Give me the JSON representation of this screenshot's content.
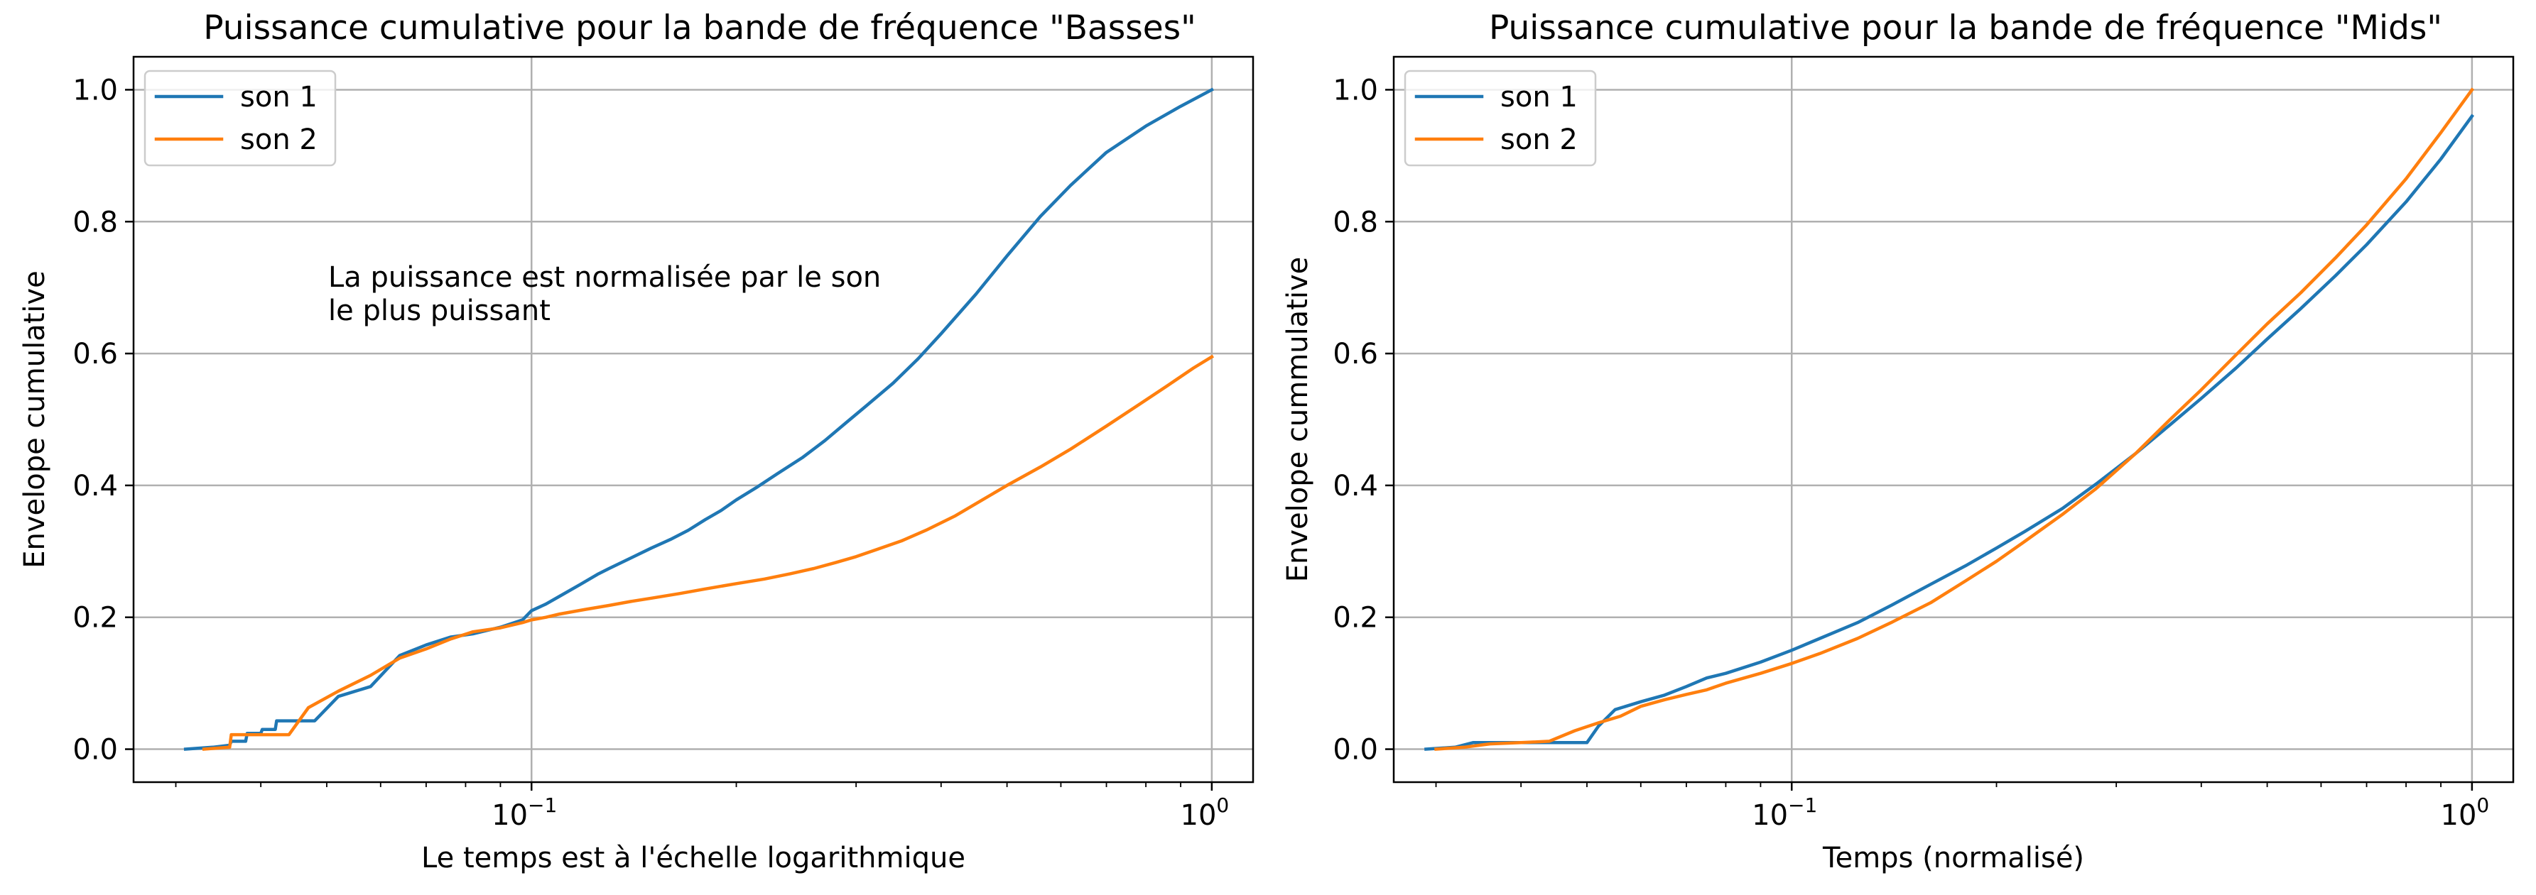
{
  "chart_data": [
    {
      "type": "line",
      "title": "Puissance cumulative pour la bande de fréquence \"Basses\"",
      "xlabel": "Le temps est à l'échelle logarithmique",
      "ylabel": "Envelope cumulative",
      "xscale": "log",
      "xlim": [
        0.026,
        1.15
      ],
      "ylim": [
        -0.05,
        1.05
      ],
      "xticks": [
        {
          "value": 0.1,
          "base": "10",
          "exp": "−1"
        },
        {
          "value": 1,
          "base": "10",
          "exp": "0"
        }
      ],
      "yticks": [
        {
          "value": 0,
          "label": "0.0"
        },
        {
          "value": 0.2,
          "label": "0.2"
        },
        {
          "value": 0.4,
          "label": "0.4"
        },
        {
          "value": 0.6,
          "label": "0.6"
        },
        {
          "value": 0.8,
          "label": "0.8"
        },
        {
          "value": 1.0,
          "label": "1.0"
        }
      ],
      "grid": true,
      "legend_position": "upper-left",
      "annotation": [
        "La puissance est normalisée par le son",
        "le plus puissant"
      ],
      "series": [
        {
          "name": "son 1",
          "color": "#1f77b4",
          "x": [
            0.031,
            0.034,
            0.036,
            0.0362,
            0.038,
            0.0382,
            0.04,
            0.0402,
            0.042,
            0.0422,
            0.045,
            0.048,
            0.052,
            0.058,
            0.064,
            0.07,
            0.076,
            0.082,
            0.09,
            0.097,
            0.1,
            0.105,
            0.11,
            0.118,
            0.125,
            0.13,
            0.14,
            0.15,
            0.16,
            0.17,
            0.18,
            0.19,
            0.2,
            0.215,
            0.23,
            0.25,
            0.27,
            0.29,
            0.31,
            0.34,
            0.37,
            0.4,
            0.45,
            0.5,
            0.56,
            0.62,
            0.7,
            0.8,
            0.9,
            1.0
          ],
          "y": [
            0.0,
            0.003,
            0.006,
            0.012,
            0.012,
            0.024,
            0.024,
            0.03,
            0.03,
            0.043,
            0.043,
            0.043,
            0.08,
            0.095,
            0.142,
            0.158,
            0.17,
            0.175,
            0.185,
            0.196,
            0.21,
            0.22,
            0.232,
            0.25,
            0.265,
            0.274,
            0.29,
            0.305,
            0.318,
            0.332,
            0.348,
            0.362,
            0.378,
            0.398,
            0.418,
            0.442,
            0.468,
            0.495,
            0.52,
            0.555,
            0.592,
            0.63,
            0.69,
            0.748,
            0.808,
            0.855,
            0.905,
            0.945,
            0.975,
            1.0
          ]
        },
        {
          "name": "son 2",
          "color": "#ff7f0e",
          "x": [
            0.033,
            0.036,
            0.0362,
            0.04,
            0.0402,
            0.044,
            0.047,
            0.052,
            0.058,
            0.064,
            0.07,
            0.076,
            0.082,
            0.09,
            0.097,
            0.1,
            0.105,
            0.11,
            0.12,
            0.13,
            0.14,
            0.15,
            0.165,
            0.18,
            0.2,
            0.22,
            0.24,
            0.26,
            0.28,
            0.3,
            0.32,
            0.35,
            0.38,
            0.42,
            0.46,
            0.5,
            0.56,
            0.62,
            0.7,
            0.78,
            0.86,
            0.94,
            1.0
          ],
          "y": [
            0.0,
            0.003,
            0.022,
            0.022,
            0.022,
            0.022,
            0.063,
            0.088,
            0.112,
            0.138,
            0.152,
            0.167,
            0.178,
            0.184,
            0.192,
            0.196,
            0.2,
            0.205,
            0.212,
            0.218,
            0.224,
            0.229,
            0.236,
            0.243,
            0.251,
            0.258,
            0.266,
            0.274,
            0.283,
            0.292,
            0.302,
            0.316,
            0.332,
            0.354,
            0.378,
            0.4,
            0.428,
            0.455,
            0.49,
            0.522,
            0.551,
            0.578,
            0.595
          ]
        }
      ]
    },
    {
      "type": "line",
      "title": "Puissance cumulative pour la bande de fréquence \"Mids\"",
      "xlabel": "Temps (normalisé)",
      "ylabel": "Envelope cummulative",
      "xscale": "log",
      "xlim": [
        0.026,
        1.15
      ],
      "ylim": [
        -0.05,
        1.05
      ],
      "xticks": [
        {
          "value": 0.1,
          "base": "10",
          "exp": "−1"
        },
        {
          "value": 1,
          "base": "10",
          "exp": "0"
        }
      ],
      "yticks": [
        {
          "value": 0,
          "label": "0.0"
        },
        {
          "value": 0.2,
          "label": "0.2"
        },
        {
          "value": 0.4,
          "label": "0.4"
        },
        {
          "value": 0.6,
          "label": "0.6"
        },
        {
          "value": 0.8,
          "label": "0.8"
        },
        {
          "value": 1.0,
          "label": "1.0"
        }
      ],
      "grid": true,
      "legend_position": "upper-left",
      "series": [
        {
          "name": "son 1",
          "color": "#1f77b4",
          "x": [
            0.029,
            0.032,
            0.034,
            0.036,
            0.04,
            0.044,
            0.05,
            0.052,
            0.055,
            0.06,
            0.065,
            0.07,
            0.075,
            0.08,
            0.09,
            0.1,
            0.11,
            0.125,
            0.14,
            0.16,
            0.18,
            0.2,
            0.22,
            0.25,
            0.28,
            0.32,
            0.36,
            0.4,
            0.45,
            0.5,
            0.56,
            0.63,
            0.7,
            0.8,
            0.9,
            1.0
          ],
          "y": [
            0.0,
            0.003,
            0.01,
            0.01,
            0.01,
            0.01,
            0.01,
            0.035,
            0.06,
            0.072,
            0.082,
            0.095,
            0.108,
            0.115,
            0.132,
            0.15,
            0.168,
            0.192,
            0.218,
            0.25,
            0.278,
            0.305,
            0.33,
            0.365,
            0.402,
            0.448,
            0.492,
            0.532,
            0.578,
            0.622,
            0.668,
            0.718,
            0.765,
            0.83,
            0.895,
            0.96
          ]
        },
        {
          "name": "son 2",
          "color": "#ff7f0e",
          "x": [
            0.03,
            0.033,
            0.036,
            0.04,
            0.044,
            0.048,
            0.052,
            0.056,
            0.06,
            0.065,
            0.07,
            0.075,
            0.08,
            0.09,
            0.1,
            0.11,
            0.125,
            0.14,
            0.16,
            0.18,
            0.2,
            0.22,
            0.25,
            0.28,
            0.32,
            0.36,
            0.4,
            0.45,
            0.5,
            0.56,
            0.63,
            0.7,
            0.8,
            0.9,
            1.0
          ],
          "y": [
            0.0,
            0.003,
            0.008,
            0.01,
            0.012,
            0.028,
            0.04,
            0.05,
            0.065,
            0.075,
            0.083,
            0.09,
            0.1,
            0.115,
            0.13,
            0.145,
            0.168,
            0.192,
            0.222,
            0.255,
            0.285,
            0.315,
            0.356,
            0.395,
            0.448,
            0.5,
            0.545,
            0.598,
            0.645,
            0.692,
            0.745,
            0.795,
            0.865,
            0.935,
            1.0
          ]
        }
      ]
    }
  ]
}
